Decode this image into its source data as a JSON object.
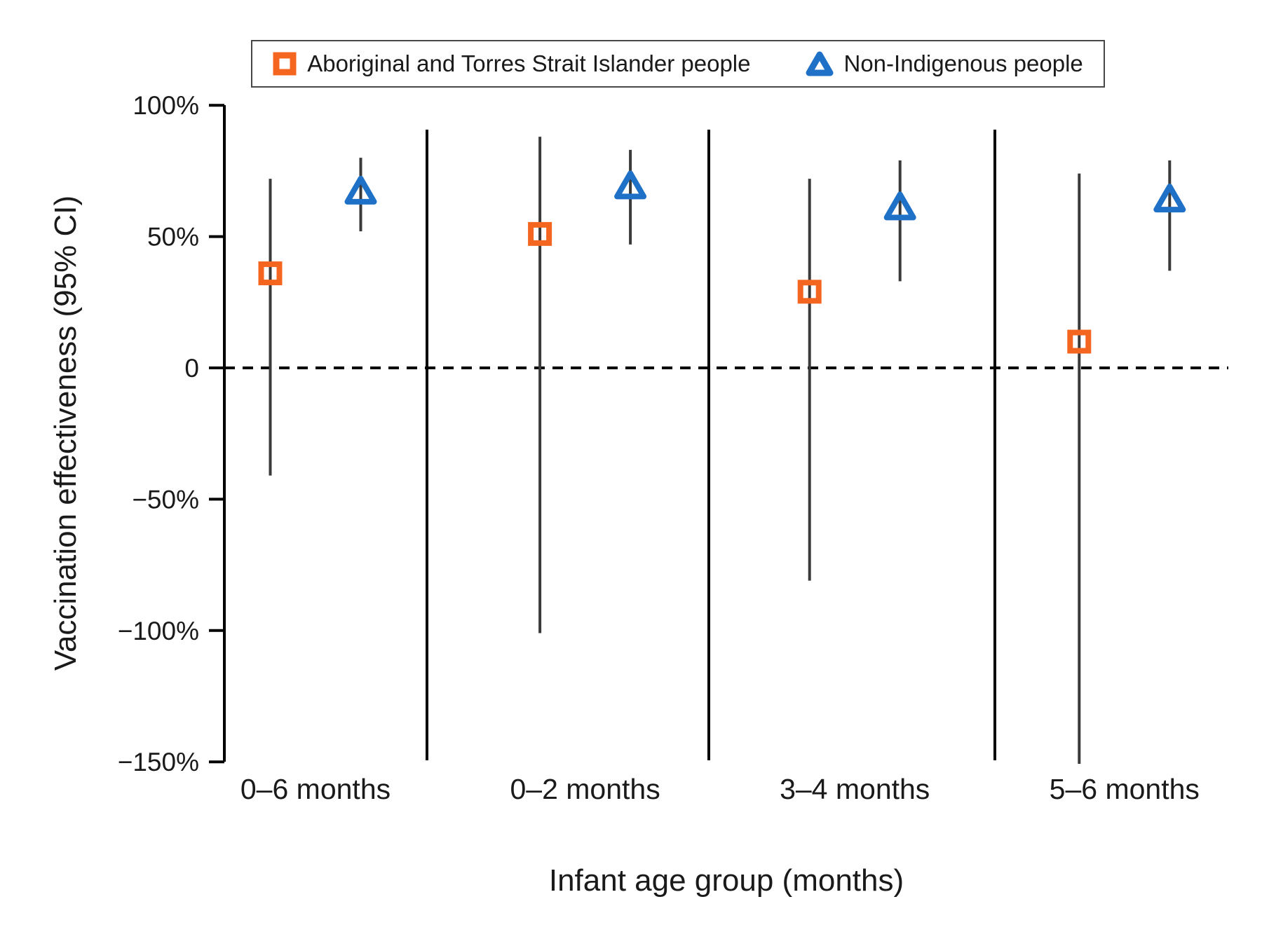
{
  "legend": {
    "items": [
      {
        "label": "Aboriginal and Torres Strait Islander people",
        "marker": "square-icon",
        "color": "#F4661F"
      },
      {
        "label": "Non-Indigenous people",
        "marker": "triangle-icon",
        "color": "#1E71C7"
      }
    ]
  },
  "axes": {
    "y_title": "Vaccination effectiveness (95% CI)",
    "x_title": "Infant age group (months)",
    "y_ticks": [
      {
        "label": "100%",
        "value": 100
      },
      {
        "label": "50%",
        "value": 50
      },
      {
        "label": "0",
        "value": 0
      },
      {
        "label": "−50%",
        "value": -50
      },
      {
        "label": "−100%",
        "value": -100
      },
      {
        "label": "−150%",
        "value": -150
      }
    ]
  },
  "chart_data": {
    "type": "scatter",
    "title": "",
    "xlabel": "Infant age group (months)",
    "ylabel": "Vaccination effectiveness (95% CI)",
    "ylim": [
      -150,
      100
    ],
    "gridlines": "none",
    "zero_reference_line": true,
    "category_separators": true,
    "legend_position": "top",
    "categories": [
      "0–6 months",
      "0–2 months",
      "3–4 months",
      "5–6 months"
    ],
    "series": [
      {
        "name": "Aboriginal and Torres Strait Islander people",
        "marker": "square",
        "color": "#F4661F",
        "points": [
          {
            "estimate": 36,
            "ci_low": -41,
            "ci_high": 72
          },
          {
            "estimate": 51,
            "ci_low": -101,
            "ci_high": 88
          },
          {
            "estimate": 29,
            "ci_low": -81,
            "ci_high": 72
          },
          {
            "estimate": 10,
            "ci_low": -150,
            "ci_high": 74,
            "ci_low_clipped": true
          }
        ]
      },
      {
        "name": "Non-Indigenous people",
        "marker": "triangle",
        "color": "#1E71C7",
        "points": [
          {
            "estimate": 67,
            "ci_low": 52,
            "ci_high": 80
          },
          {
            "estimate": 69,
            "ci_low": 47,
            "ci_high": 83
          },
          {
            "estimate": 61,
            "ci_low": 33,
            "ci_high": 79
          },
          {
            "estimate": 64,
            "ci_low": 37,
            "ci_high": 79
          }
        ]
      }
    ]
  }
}
